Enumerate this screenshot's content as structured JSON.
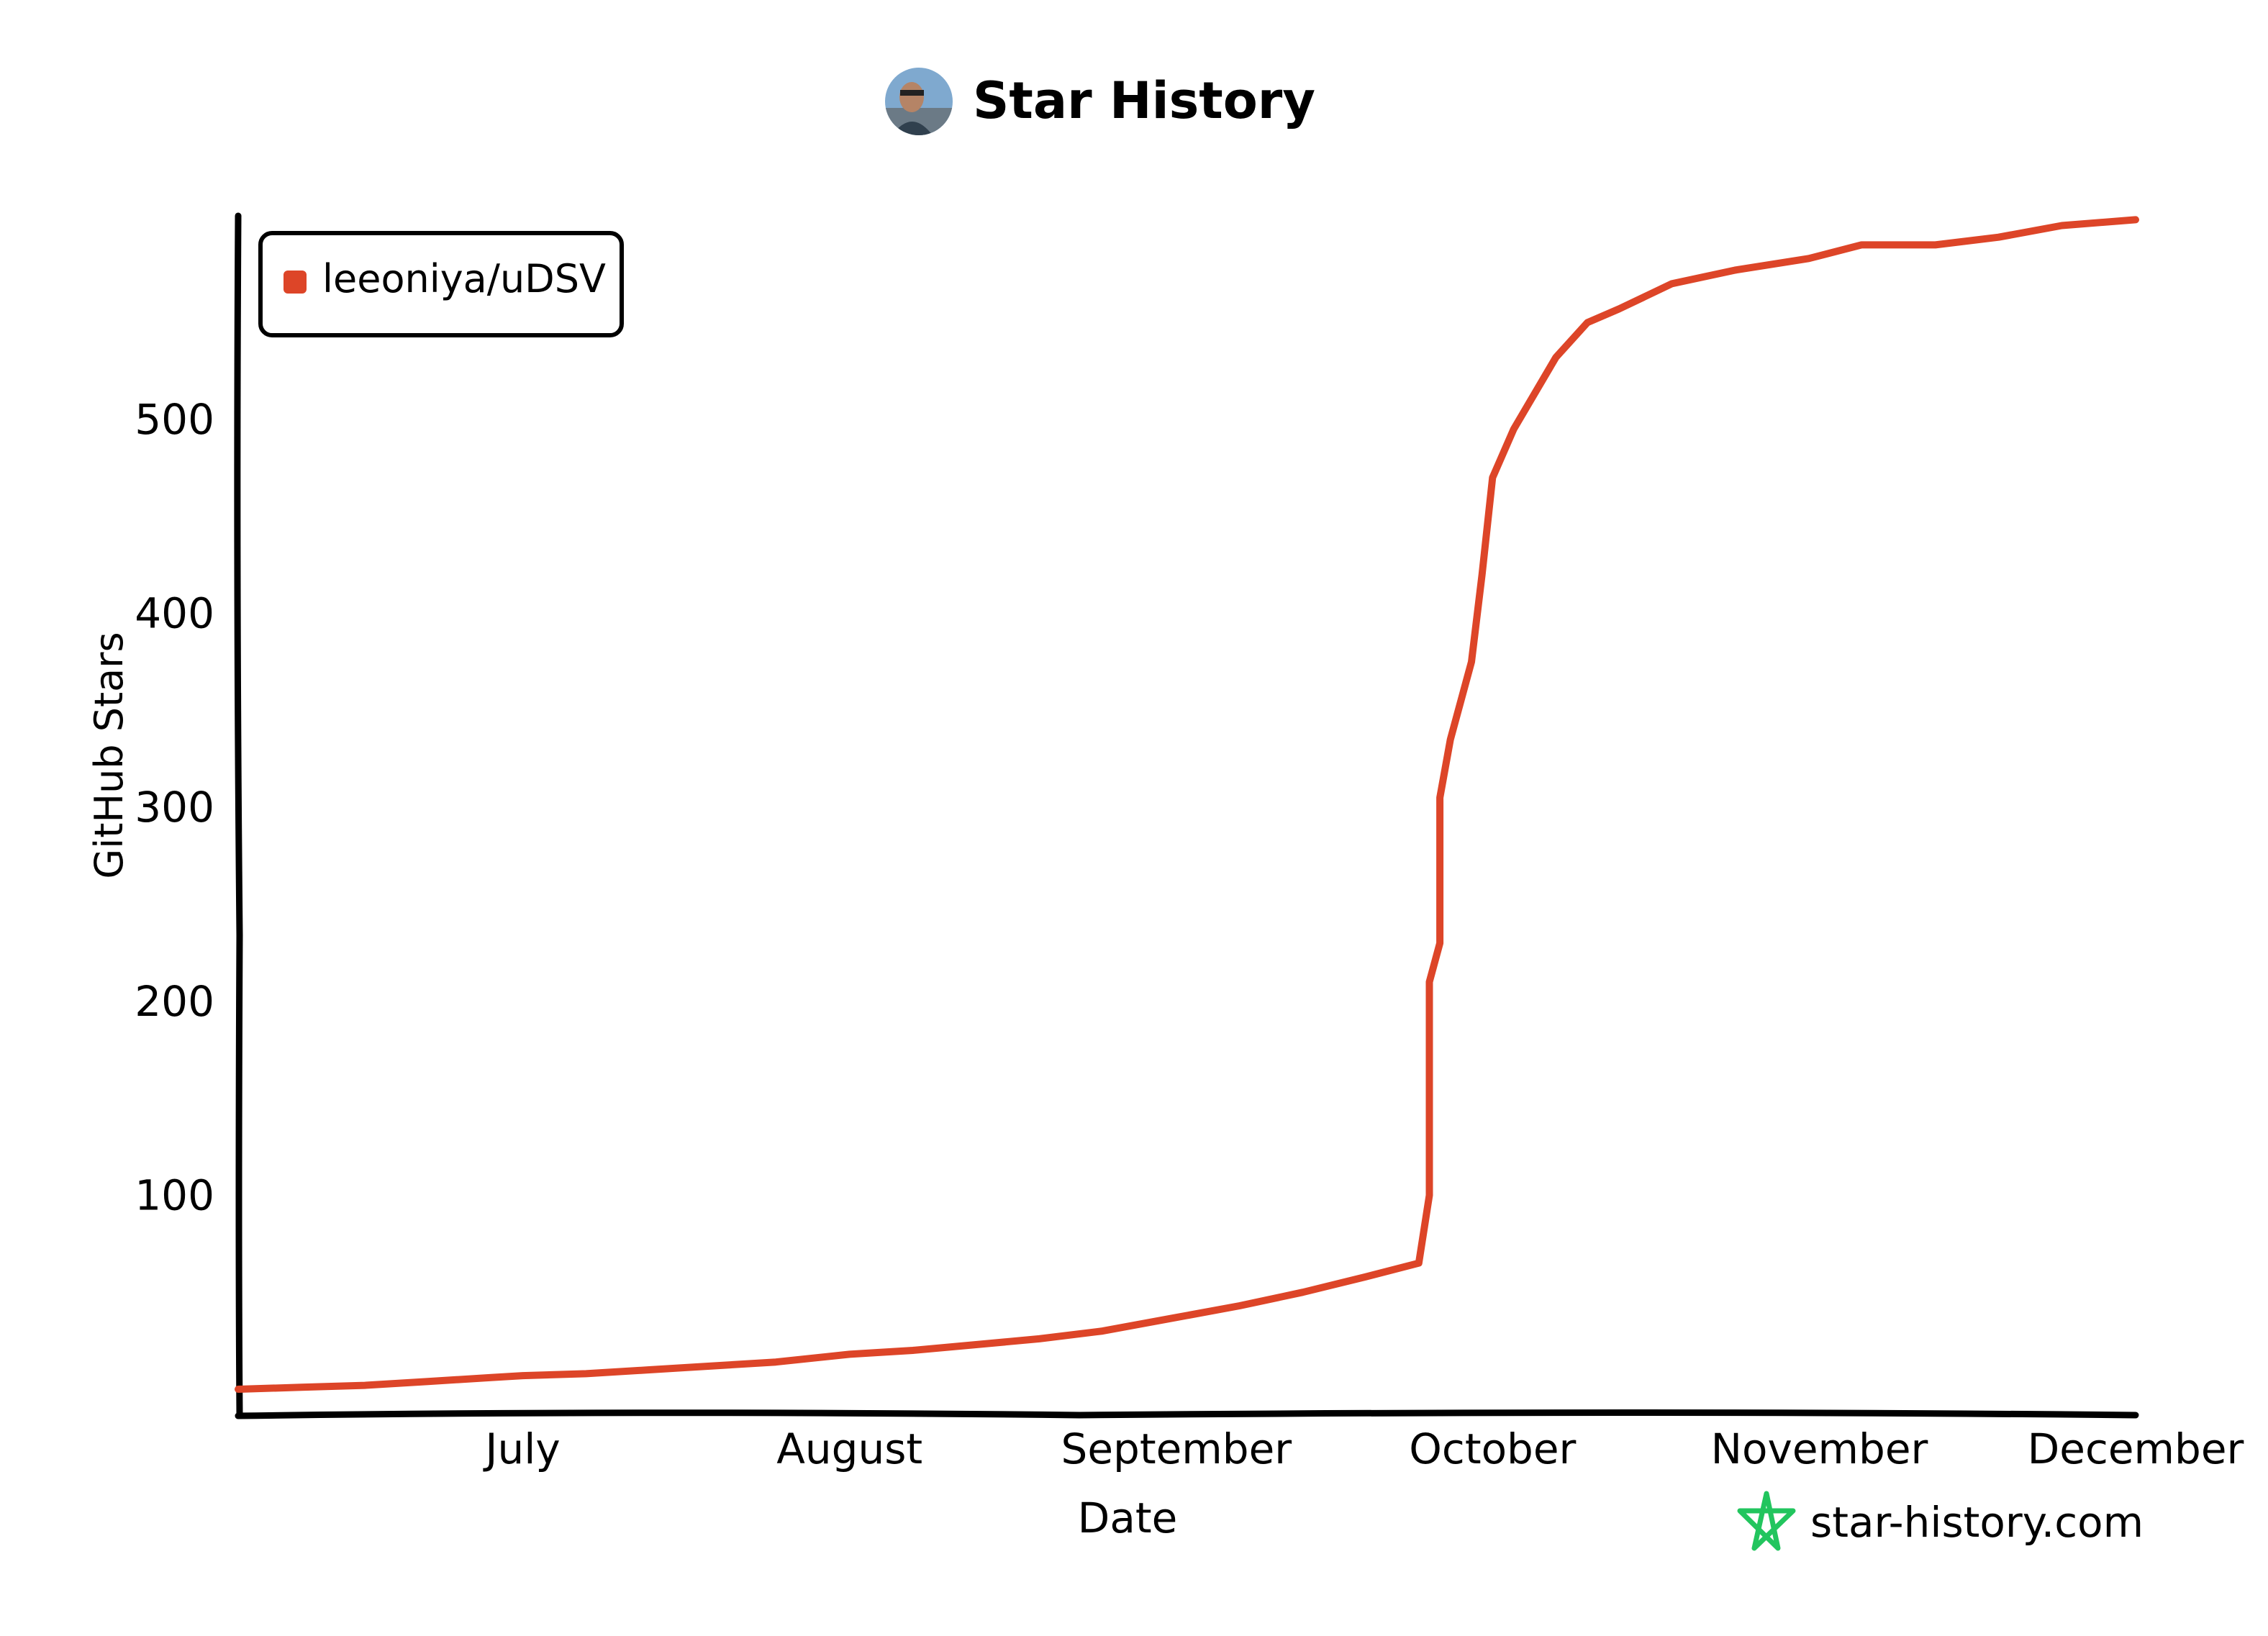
{
  "header": {
    "title": "Star History",
    "avatar_icon": "user-avatar-icon"
  },
  "watermark": {
    "text": "star-history.com",
    "icon": "star-logo-icon",
    "color": "#22c55e"
  },
  "colors": {
    "series": "#dd4528",
    "axis": "#000000",
    "background": "#ffffff"
  },
  "chart_data": {
    "type": "line",
    "title": "Star History",
    "xlabel": "Date",
    "ylabel": "GitHub Stars",
    "x_ticks": [
      "July",
      "August",
      "September",
      "October",
      "November",
      "December"
    ],
    "y_ticks": [
      "100",
      "200",
      "300",
      "400",
      "500"
    ],
    "ylim": [
      -13,
      605
    ],
    "xlim": [
      "2023-06-04",
      "2023-12-01"
    ],
    "grid": false,
    "legend_position": "top-left",
    "series": [
      {
        "name": "leeoniya/uDSV",
        "color": "#dd4528",
        "points": [
          {
            "x": "2023-06-04",
            "y": 0
          },
          {
            "x": "2023-06-10",
            "y": 1
          },
          {
            "x": "2023-06-16",
            "y": 2
          },
          {
            "x": "2023-06-22",
            "y": 4
          },
          {
            "x": "2023-06-28",
            "y": 6
          },
          {
            "x": "2023-07-01",
            "y": 7
          },
          {
            "x": "2023-07-07",
            "y": 8
          },
          {
            "x": "2023-07-13",
            "y": 10
          },
          {
            "x": "2023-07-19",
            "y": 12
          },
          {
            "x": "2023-07-25",
            "y": 14
          },
          {
            "x": "2023-08-01",
            "y": 18
          },
          {
            "x": "2023-08-07",
            "y": 20
          },
          {
            "x": "2023-08-13",
            "y": 23
          },
          {
            "x": "2023-08-19",
            "y": 26
          },
          {
            "x": "2023-08-25",
            "y": 30
          },
          {
            "x": "2023-09-01",
            "y": 37
          },
          {
            "x": "2023-09-07",
            "y": 43
          },
          {
            "x": "2023-09-13",
            "y": 50
          },
          {
            "x": "2023-09-19",
            "y": 58
          },
          {
            "x": "2023-09-24",
            "y": 65
          },
          {
            "x": "2023-09-25",
            "y": 100
          },
          {
            "x": "2023-09-25",
            "y": 210
          },
          {
            "x": "2023-09-26",
            "y": 230
          },
          {
            "x": "2023-09-26",
            "y": 305
          },
          {
            "x": "2023-09-27",
            "y": 335
          },
          {
            "x": "2023-09-29",
            "y": 375
          },
          {
            "x": "2023-09-30",
            "y": 420
          },
          {
            "x": "2023-10-01",
            "y": 470
          },
          {
            "x": "2023-10-03",
            "y": 495
          },
          {
            "x": "2023-10-07",
            "y": 532
          },
          {
            "x": "2023-10-10",
            "y": 550
          },
          {
            "x": "2023-10-13",
            "y": 557
          },
          {
            "x": "2023-10-18",
            "y": 570
          },
          {
            "x": "2023-10-24",
            "y": 577
          },
          {
            "x": "2023-10-31",
            "y": 583
          },
          {
            "x": "2023-11-05",
            "y": 590
          },
          {
            "x": "2023-11-12",
            "y": 590
          },
          {
            "x": "2023-11-18",
            "y": 594
          },
          {
            "x": "2023-11-24",
            "y": 600
          },
          {
            "x": "2023-12-01",
            "y": 603
          }
        ]
      }
    ]
  }
}
